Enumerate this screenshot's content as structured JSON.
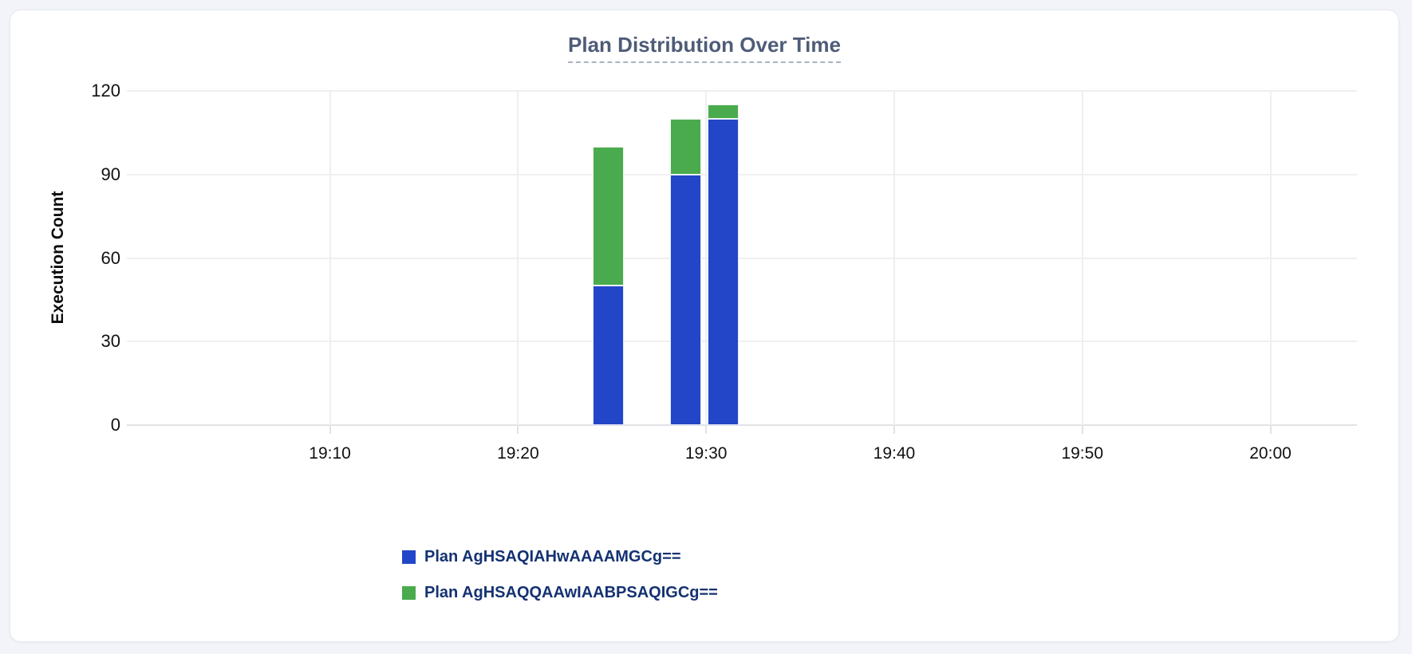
{
  "chart_data": {
    "type": "bar",
    "stacked": true,
    "title": "Plan Distribution Over Time",
    "xlabel": "",
    "ylabel": "Execution Count",
    "grid": true,
    "legend_position": "bottom-left",
    "x_axis": {
      "kind": "time",
      "range_minutes_after_1800": [
        59.5,
        124.6
      ],
      "ticks": [
        {
          "minutes": 70,
          "label": "19:10"
        },
        {
          "minutes": 80,
          "label": "19:20"
        },
        {
          "minutes": 90,
          "label": "19:30"
        },
        {
          "minutes": 100,
          "label": "19:40"
        },
        {
          "minutes": 110,
          "label": "19:50"
        },
        {
          "minutes": 120,
          "label": "20:00"
        }
      ]
    },
    "y_axis": {
      "range": [
        0,
        120
      ],
      "ticks": [
        0,
        30,
        60,
        90,
        120
      ]
    },
    "categories": [
      "19:25",
      "19:29",
      "19:31"
    ],
    "bar_minutes_after_1800": [
      84.8,
      88.9,
      90.9
    ],
    "bar_width_minutes": 1.66,
    "series": [
      {
        "name": "Plan AgHSAQIAHwAAAAMGCg==",
        "color": "#2346c8",
        "values": [
          50,
          90,
          110
        ]
      },
      {
        "name": "Plan AgHSAQQAAwIAABPSAQIGCg==",
        "color": "#4aab4e",
        "values": [
          50,
          20,
          5
        ]
      }
    ],
    "totals": [
      100,
      110,
      115
    ]
  }
}
